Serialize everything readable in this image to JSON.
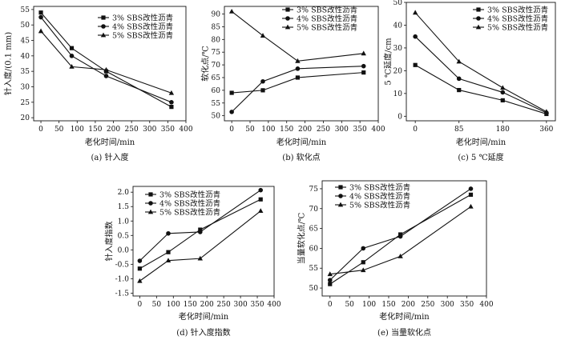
{
  "chart_data": [
    {
      "id": "a",
      "type": "line",
      "caption": "(a) 针入度",
      "xlabel": "老化时间/min",
      "ylabel": "针入度/(0.1 mm)",
      "xlim": [
        -20,
        400
      ],
      "ylim": [
        19,
        56
      ],
      "xticks": [
        0,
        50,
        100,
        150,
        200,
        250,
        300,
        350,
        400
      ],
      "yticks": [
        20,
        25,
        30,
        35,
        40,
        45,
        50,
        55
      ],
      "x": [
        0,
        85,
        180,
        360
      ],
      "series": [
        {
          "name": "3% SBS改性沥青",
          "marker": "square",
          "values": [
            54,
            42.5,
            35,
            23.5
          ]
        },
        {
          "name": "4% SBS改性沥青",
          "marker": "circle",
          "values": [
            52.5,
            40,
            33.5,
            25
          ]
        },
        {
          "name": "5% SBS改性沥青",
          "marker": "triangle",
          "values": [
            48,
            36.5,
            35.5,
            28
          ]
        }
      ]
    },
    {
      "id": "b",
      "type": "line",
      "caption": "(b) 软化点",
      "xlabel": "老化时间/min",
      "ylabel": "软化点/℃",
      "xlim": [
        -20,
        400
      ],
      "ylim": [
        48,
        93
      ],
      "xticks": [
        0,
        50,
        100,
        150,
        200,
        250,
        300,
        350,
        400
      ],
      "yticks": [
        50,
        55,
        60,
        65,
        70,
        75,
        80,
        85,
        90
      ],
      "x": [
        0,
        85,
        180,
        360
      ],
      "series": [
        {
          "name": "3% SBS改性沥青",
          "marker": "square",
          "values": [
            59,
            60,
            65,
            67
          ]
        },
        {
          "name": "4% SBS改性沥青",
          "marker": "circle",
          "values": [
            51.5,
            63.5,
            68.5,
            69.5
          ]
        },
        {
          "name": "5% SBS改性沥青",
          "marker": "triangle",
          "values": [
            91,
            81.5,
            71.5,
            74.5
          ]
        }
      ]
    },
    {
      "id": "c",
      "type": "line",
      "caption": "(c) 5 ℃延度",
      "xlabel": "老化时间/min",
      "ylabel": "5 ℃延度/cm",
      "categories": [
        "0",
        "85",
        "180",
        "360"
      ],
      "ylim": [
        -2,
        50
      ],
      "yticks": [
        0,
        10,
        20,
        30,
        40,
        50
      ],
      "series": [
        {
          "name": "3% SBS改性沥青",
          "marker": "square",
          "values": [
            22.5,
            11.5,
            7,
            1
          ]
        },
        {
          "name": "4% SBS改性沥青",
          "marker": "circle",
          "values": [
            35,
            16.5,
            10.5,
            1.5
          ]
        },
        {
          "name": "5% SBS改性沥青",
          "marker": "triangle",
          "values": [
            45.5,
            24,
            12.5,
            2
          ]
        }
      ]
    },
    {
      "id": "d",
      "type": "line",
      "caption": "(d) 针入度指数",
      "xlabel": "老化时间/min",
      "ylabel": "针入度指数",
      "xlim": [
        -20,
        400
      ],
      "ylim": [
        -1.6,
        2.2
      ],
      "xticks": [
        0,
        50,
        100,
        150,
        200,
        250,
        300,
        350,
        400
      ],
      "yticks": [
        -1.5,
        -1.0,
        -0.5,
        0.0,
        0.5,
        1.0,
        1.5,
        2.0
      ],
      "ytick_labels": [
        "-1.5",
        "-1.0",
        "-0.5",
        "0.0",
        "0.5",
        "1.0",
        "1.5",
        "2.0"
      ],
      "x": [
        0,
        85,
        180,
        360
      ],
      "series": [
        {
          "name": "3% SBS改性沥青",
          "marker": "square",
          "values": [
            -0.65,
            -0.08,
            0.7,
            1.75
          ]
        },
        {
          "name": "4% SBS改性沥青",
          "marker": "circle",
          "values": [
            -0.38,
            0.57,
            0.62,
            2.07
          ]
        },
        {
          "name": "5% SBS改性沥青",
          "marker": "triangle",
          "values": [
            -1.08,
            -0.37,
            -0.3,
            1.35
          ]
        }
      ]
    },
    {
      "id": "e",
      "type": "line",
      "caption": "(e) 当量软化点",
      "xlabel": "老化时间/min",
      "ylabel": "当量软化点/℃",
      "xlim": [
        -20,
        400
      ],
      "ylim": [
        48,
        77
      ],
      "xticks": [
        0,
        50,
        100,
        150,
        200,
        250,
        300,
        350,
        400
      ],
      "yticks": [
        50,
        55,
        60,
        65,
        70,
        75
      ],
      "x": [
        0,
        85,
        180,
        360
      ],
      "series": [
        {
          "name": "3% SBS改性沥青",
          "marker": "square",
          "values": [
            51,
            56.5,
            63.5,
            73.5
          ]
        },
        {
          "name": "4% SBS改性沥青",
          "marker": "circle",
          "values": [
            52,
            60,
            63,
            75
          ]
        },
        {
          "name": "5% SBS改性沥青",
          "marker": "triangle",
          "values": [
            53.5,
            54.5,
            58,
            70.5
          ]
        }
      ]
    }
  ]
}
